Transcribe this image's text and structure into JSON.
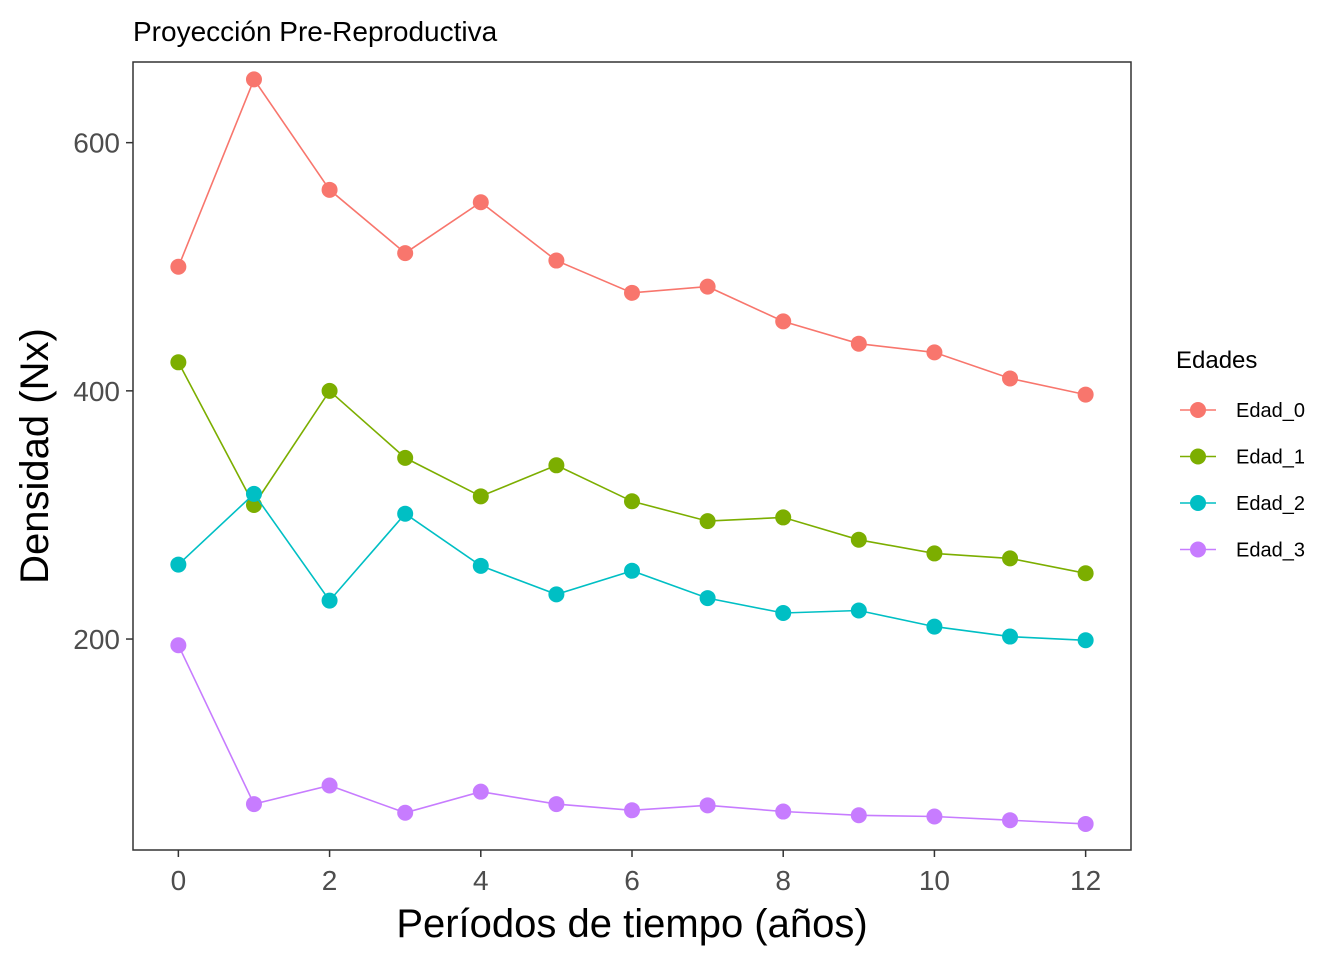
{
  "chart_data": {
    "type": "line",
    "title": "Proyección Pre-Reproductiva",
    "xlabel": "Períodos de tiempo (años)",
    "ylabel": "Densidad (Nx)",
    "x": [
      0,
      1,
      2,
      3,
      4,
      5,
      6,
      7,
      8,
      9,
      10,
      11,
      12
    ],
    "xlim": [
      -0.6,
      12.6
    ],
    "ylim": [
      30,
      665
    ],
    "xticks": [
      0,
      2,
      4,
      6,
      8,
      10,
      12
    ],
    "yticks": [
      200,
      400,
      600
    ],
    "grid": false,
    "legend": {
      "title": "Edades",
      "position": "right"
    },
    "series": [
      {
        "name": "Edad_0",
        "color": "#F8766D",
        "values": [
          500,
          651,
          562,
          511,
          552,
          505,
          479,
          484,
          456,
          438,
          431,
          410,
          397
        ]
      },
      {
        "name": "Edad_1",
        "color": "#7CAE00",
        "values": [
          423,
          308,
          400,
          346,
          315,
          340,
          311,
          295,
          298,
          280,
          269,
          265,
          253
        ]
      },
      {
        "name": "Edad_2",
        "color": "#00BFC4",
        "values": [
          260,
          317,
          231,
          301,
          259,
          236,
          255,
          233,
          221,
          223,
          210,
          202,
          199
        ]
      },
      {
        "name": "Edad_3",
        "color": "#C77CFF",
        "values": [
          195,
          67,
          82,
          60,
          77,
          67,
          62,
          66,
          61,
          58,
          57,
          54,
          51
        ]
      }
    ]
  }
}
